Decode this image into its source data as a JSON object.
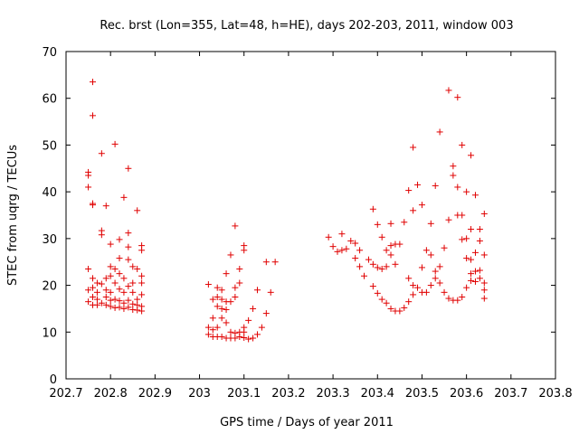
{
  "chart_data": {
    "type": "scatter",
    "title": "Rec. brst (Lon=355, Lat=48, h=HE), days 202-203, 2011, window 003",
    "xlabel": "GPS time / Days of year 2011",
    "ylabel": "STEC from uqrg / TECUs",
    "xlim": [
      202.7,
      203.8
    ],
    "ylim": [
      0,
      70
    ],
    "x_ticks": [
      "202.7",
      "202.8",
      "202.9",
      "203",
      "203.1",
      "203.2",
      "203.3",
      "203.4",
      "203.5",
      "203.6",
      "203.7",
      "203.8"
    ],
    "y_ticks": [
      "0",
      "10",
      "20",
      "30",
      "40",
      "50",
      "60",
      "70"
    ],
    "x_tick_values": [
      202.7,
      202.8,
      202.9,
      203.0,
      203.1,
      203.2,
      203.3,
      203.4,
      203.5,
      203.6,
      203.7,
      203.8
    ],
    "y_tick_values": [
      0,
      10,
      20,
      30,
      40,
      50,
      60,
      70
    ],
    "grid": false,
    "marker": "+",
    "marker_color": "#e00000",
    "series": [
      {
        "points": [
          [
            202.75,
            16.5
          ],
          [
            202.75,
            19.0
          ],
          [
            202.75,
            23.5
          ],
          [
            202.75,
            41.0
          ],
          [
            202.75,
            43.5
          ],
          [
            202.75,
            44.2
          ],
          [
            202.76,
            15.8
          ],
          [
            202.76,
            17.5
          ],
          [
            202.76,
            19.5
          ],
          [
            202.76,
            21.5
          ],
          [
            202.76,
            37.2
          ],
          [
            202.76,
            37.5
          ],
          [
            202.76,
            56.3
          ],
          [
            202.76,
            63.5
          ],
          [
            202.77,
            15.8
          ],
          [
            202.77,
            17.0
          ],
          [
            202.77,
            18.5
          ],
          [
            202.77,
            20.5
          ],
          [
            202.78,
            16.2
          ],
          [
            202.78,
            20.3
          ],
          [
            202.78,
            30.8
          ],
          [
            202.78,
            31.7
          ],
          [
            202.78,
            48.2
          ],
          [
            202.79,
            15.8
          ],
          [
            202.79,
            17.5
          ],
          [
            202.79,
            19.0
          ],
          [
            202.79,
            21.5
          ],
          [
            202.79,
            37.0
          ],
          [
            202.8,
            15.5
          ],
          [
            202.8,
            16.8
          ],
          [
            202.8,
            18.5
          ],
          [
            202.8,
            22.0
          ],
          [
            202.8,
            24.0
          ],
          [
            202.8,
            28.8
          ],
          [
            202.81,
            15.2
          ],
          [
            202.81,
            17.0
          ],
          [
            202.81,
            20.5
          ],
          [
            202.81,
            23.5
          ],
          [
            202.81,
            50.2
          ],
          [
            202.82,
            15.3
          ],
          [
            202.82,
            16.7
          ],
          [
            202.82,
            19.2
          ],
          [
            202.82,
            22.5
          ],
          [
            202.82,
            25.8
          ],
          [
            202.82,
            29.8
          ],
          [
            202.83,
            15.0
          ],
          [
            202.83,
            16.2
          ],
          [
            202.83,
            18.5
          ],
          [
            202.83,
            21.5
          ],
          [
            202.83,
            38.8
          ],
          [
            202.84,
            15.3
          ],
          [
            202.84,
            16.8
          ],
          [
            202.84,
            19.8
          ],
          [
            202.84,
            25.5
          ],
          [
            202.84,
            28.2
          ],
          [
            202.84,
            31.2
          ],
          [
            202.84,
            45.0
          ],
          [
            202.85,
            14.8
          ],
          [
            202.85,
            16.0
          ],
          [
            202.85,
            18.5
          ],
          [
            202.85,
            20.5
          ],
          [
            202.85,
            24.0
          ],
          [
            202.86,
            14.7
          ],
          [
            202.86,
            15.8
          ],
          [
            202.86,
            17.0
          ],
          [
            202.86,
            23.5
          ],
          [
            202.86,
            36.0
          ],
          [
            202.87,
            14.5
          ],
          [
            202.87,
            15.5
          ],
          [
            202.87,
            18.0
          ],
          [
            202.87,
            20.5
          ],
          [
            202.87,
            22.0
          ],
          [
            202.87,
            27.5
          ],
          [
            202.87,
            28.5
          ],
          [
            203.02,
            9.5
          ],
          [
            203.02,
            11.0
          ],
          [
            203.02,
            20.2
          ],
          [
            203.03,
            9.0
          ],
          [
            203.03,
            10.5
          ],
          [
            203.03,
            13.0
          ],
          [
            203.03,
            17.0
          ],
          [
            203.04,
            9.0
          ],
          [
            203.04,
            11.0
          ],
          [
            203.04,
            15.5
          ],
          [
            203.04,
            17.5
          ],
          [
            203.04,
            19.5
          ],
          [
            203.05,
            9.0
          ],
          [
            203.05,
            13.0
          ],
          [
            203.05,
            15.0
          ],
          [
            203.05,
            17.0
          ],
          [
            203.05,
            19.0
          ],
          [
            203.06,
            8.7
          ],
          [
            203.06,
            12.0
          ],
          [
            203.06,
            14.8
          ],
          [
            203.06,
            16.5
          ],
          [
            203.06,
            22.5
          ],
          [
            203.07,
            8.7
          ],
          [
            203.07,
            10.0
          ],
          [
            203.07,
            16.5
          ],
          [
            203.07,
            26.5
          ],
          [
            203.08,
            8.7
          ],
          [
            203.08,
            9.8
          ],
          [
            203.08,
            17.5
          ],
          [
            203.08,
            19.5
          ],
          [
            203.08,
            32.7
          ],
          [
            203.09,
            9.0
          ],
          [
            203.09,
            10.0
          ],
          [
            203.09,
            20.5
          ],
          [
            203.09,
            23.5
          ],
          [
            203.1,
            8.8
          ],
          [
            203.1,
            10.0
          ],
          [
            203.1,
            11.0
          ],
          [
            203.1,
            27.5
          ],
          [
            203.1,
            28.5
          ],
          [
            203.11,
            8.5
          ],
          [
            203.11,
            12.5
          ],
          [
            203.12,
            8.7
          ],
          [
            203.12,
            15.0
          ],
          [
            203.13,
            9.5
          ],
          [
            203.13,
            19.0
          ],
          [
            203.14,
            11.0
          ],
          [
            203.15,
            14.0
          ],
          [
            203.15,
            25.0
          ],
          [
            203.16,
            18.5
          ],
          [
            203.17,
            25.0
          ],
          [
            203.29,
            30.3
          ],
          [
            203.3,
            28.3
          ],
          [
            203.31,
            27.2
          ],
          [
            203.32,
            27.5
          ],
          [
            203.32,
            31.0
          ],
          [
            203.33,
            27.8
          ],
          [
            203.34,
            29.5
          ],
          [
            203.35,
            25.8
          ],
          [
            203.35,
            29.0
          ],
          [
            203.36,
            24.0
          ],
          [
            203.36,
            27.5
          ],
          [
            203.37,
            22.0
          ],
          [
            203.38,
            25.5
          ],
          [
            203.39,
            19.8
          ],
          [
            203.39,
            24.5
          ],
          [
            203.39,
            36.3
          ],
          [
            203.4,
            18.3
          ],
          [
            203.4,
            23.8
          ],
          [
            203.4,
            33.0
          ],
          [
            203.41,
            17.0
          ],
          [
            203.41,
            23.5
          ],
          [
            203.41,
            30.3
          ],
          [
            203.42,
            16.2
          ],
          [
            203.42,
            24.0
          ],
          [
            203.42,
            27.5
          ],
          [
            203.43,
            15.0
          ],
          [
            203.43,
            26.5
          ],
          [
            203.43,
            28.5
          ],
          [
            203.43,
            33.2
          ],
          [
            203.44,
            14.5
          ],
          [
            203.44,
            24.5
          ],
          [
            203.44,
            28.8
          ],
          [
            203.45,
            14.5
          ],
          [
            203.45,
            28.8
          ],
          [
            203.46,
            15.2
          ],
          [
            203.46,
            33.5
          ],
          [
            203.47,
            16.5
          ],
          [
            203.47,
            21.5
          ],
          [
            203.47,
            40.3
          ],
          [
            203.48,
            18.0
          ],
          [
            203.48,
            20.0
          ],
          [
            203.48,
            36.0
          ],
          [
            203.48,
            49.5
          ],
          [
            203.49,
            19.5
          ],
          [
            203.49,
            41.5
          ],
          [
            203.5,
            18.5
          ],
          [
            203.5,
            23.8
          ],
          [
            203.5,
            37.2
          ],
          [
            203.51,
            18.5
          ],
          [
            203.51,
            27.5
          ],
          [
            203.52,
            20.0
          ],
          [
            203.52,
            26.5
          ],
          [
            203.52,
            33.2
          ],
          [
            203.53,
            21.5
          ],
          [
            203.53,
            23.0
          ],
          [
            203.53,
            41.3
          ],
          [
            203.54,
            20.5
          ],
          [
            203.54,
            24.0
          ],
          [
            203.54,
            52.8
          ],
          [
            203.55,
            18.5
          ],
          [
            203.55,
            28.0
          ],
          [
            203.56,
            17.2
          ],
          [
            203.56,
            34.0
          ],
          [
            203.56,
            61.7
          ],
          [
            203.57,
            16.8
          ],
          [
            203.57,
            43.5
          ],
          [
            203.57,
            45.5
          ],
          [
            203.58,
            16.8
          ],
          [
            203.58,
            35.0
          ],
          [
            203.58,
            41.0
          ],
          [
            203.58,
            60.2
          ],
          [
            203.59,
            17.5
          ],
          [
            203.59,
            29.8
          ],
          [
            203.59,
            35.0
          ],
          [
            203.59,
            50.0
          ],
          [
            203.6,
            19.5
          ],
          [
            203.6,
            25.8
          ],
          [
            203.6,
            30.0
          ],
          [
            203.6,
            40.0
          ],
          [
            203.61,
            21.0
          ],
          [
            203.61,
            22.5
          ],
          [
            203.61,
            25.5
          ],
          [
            203.61,
            32.0
          ],
          [
            203.61,
            47.8
          ],
          [
            203.62,
            20.8
          ],
          [
            203.62,
            23.0
          ],
          [
            203.62,
            27.0
          ],
          [
            203.62,
            39.3
          ],
          [
            203.63,
            21.5
          ],
          [
            203.63,
            23.2
          ],
          [
            203.63,
            29.5
          ],
          [
            203.63,
            32.0
          ],
          [
            203.64,
            17.2
          ],
          [
            203.64,
            19.0
          ],
          [
            203.64,
            20.5
          ],
          [
            203.64,
            26.5
          ],
          [
            203.64,
            35.3
          ]
        ]
      }
    ]
  }
}
